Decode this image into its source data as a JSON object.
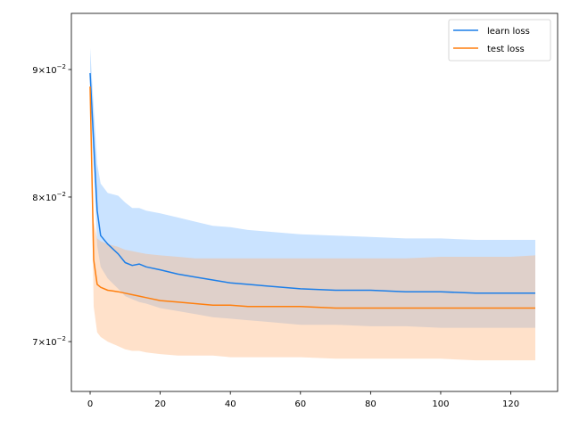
{
  "chart_data": {
    "type": "line",
    "title": "",
    "xlabel": "",
    "ylabel": "",
    "y_scale": "log",
    "xlim": [
      -5.35,
      133.35
    ],
    "ylim": [
      0.06685,
      0.09479
    ],
    "x_ticks": [
      0,
      20,
      40,
      60,
      80,
      100,
      120
    ],
    "y_ticks": [
      {
        "value": 0.07,
        "base": "7",
        "times": "×10",
        "exp": "−2"
      },
      {
        "value": 0.08,
        "base": "8",
        "times": "×10",
        "exp": "−2"
      },
      {
        "value": 0.09,
        "base": "9",
        "times": "×10",
        "exp": "−2"
      }
    ],
    "grid": false,
    "legend_position": "upper right",
    "colors": {
      "learn_line": "#1c7ee8",
      "learn_band": "#7ab9ff",
      "test_line": "#ff7f0e",
      "test_band": "#ffb57a"
    },
    "series": [
      {
        "name": "learn loss",
        "x": [
          0,
          2,
          3,
          5,
          8,
          10,
          12,
          14,
          16,
          20,
          25,
          30,
          35,
          40,
          45,
          50,
          55,
          60,
          70,
          80,
          90,
          100,
          110,
          120,
          127
        ],
        "y": [
          0.0897,
          0.079,
          0.0772,
          0.0766,
          0.0759,
          0.0753,
          0.0751,
          0.0752,
          0.075,
          0.0748,
          0.0745,
          0.0743,
          0.0741,
          0.0739,
          0.0738,
          0.0737,
          0.0736,
          0.0735,
          0.0734,
          0.0734,
          0.0733,
          0.0733,
          0.0732,
          0.0732,
          0.0732
        ],
        "y_upper": [
          0.0918,
          0.0825,
          0.081,
          0.0803,
          0.0801,
          0.0796,
          0.0792,
          0.0792,
          0.079,
          0.0788,
          0.0785,
          0.0782,
          0.0779,
          0.0778,
          0.0776,
          0.0775,
          0.0774,
          0.0773,
          0.0772,
          0.0771,
          0.077,
          0.077,
          0.0769,
          0.0769,
          0.0769
        ],
        "y_lower": [
          0.0883,
          0.0765,
          0.075,
          0.0742,
          0.0735,
          0.073,
          0.0728,
          0.0726,
          0.0725,
          0.0722,
          0.072,
          0.0718,
          0.0716,
          0.0715,
          0.0714,
          0.0713,
          0.0712,
          0.0711,
          0.0711,
          0.071,
          0.071,
          0.0709,
          0.0709,
          0.0709,
          0.0709
        ]
      },
      {
        "name": "test loss",
        "x": [
          0,
          1,
          2,
          3,
          5,
          8,
          10,
          12,
          14,
          16,
          20,
          25,
          30,
          35,
          40,
          45,
          50,
          55,
          60,
          70,
          80,
          90,
          100,
          110,
          120,
          127
        ],
        "y": [
          0.0886,
          0.0755,
          0.0738,
          0.0736,
          0.0734,
          0.0733,
          0.0732,
          0.0731,
          0.073,
          0.0729,
          0.0727,
          0.0726,
          0.0725,
          0.0724,
          0.0724,
          0.0723,
          0.0723,
          0.0723,
          0.0723,
          0.0722,
          0.0722,
          0.0722,
          0.0722,
          0.0722,
          0.0722,
          0.0722
        ],
        "y_upper": [
          0.089,
          0.0782,
          0.077,
          0.0768,
          0.0766,
          0.0764,
          0.0762,
          0.0761,
          0.076,
          0.0759,
          0.0758,
          0.0757,
          0.0756,
          0.0756,
          0.0756,
          0.0756,
          0.0756,
          0.0756,
          0.0756,
          0.0756,
          0.0756,
          0.0756,
          0.0757,
          0.0757,
          0.0757,
          0.0758
        ],
        "y_lower": [
          0.0882,
          0.0723,
          0.0706,
          0.0703,
          0.07,
          0.0697,
          0.0695,
          0.0694,
          0.0694,
          0.0693,
          0.0692,
          0.0691,
          0.0691,
          0.0691,
          0.069,
          0.069,
          0.069,
          0.069,
          0.069,
          0.0689,
          0.0689,
          0.0689,
          0.0689,
          0.0688,
          0.0688,
          0.0688
        ]
      }
    ]
  }
}
